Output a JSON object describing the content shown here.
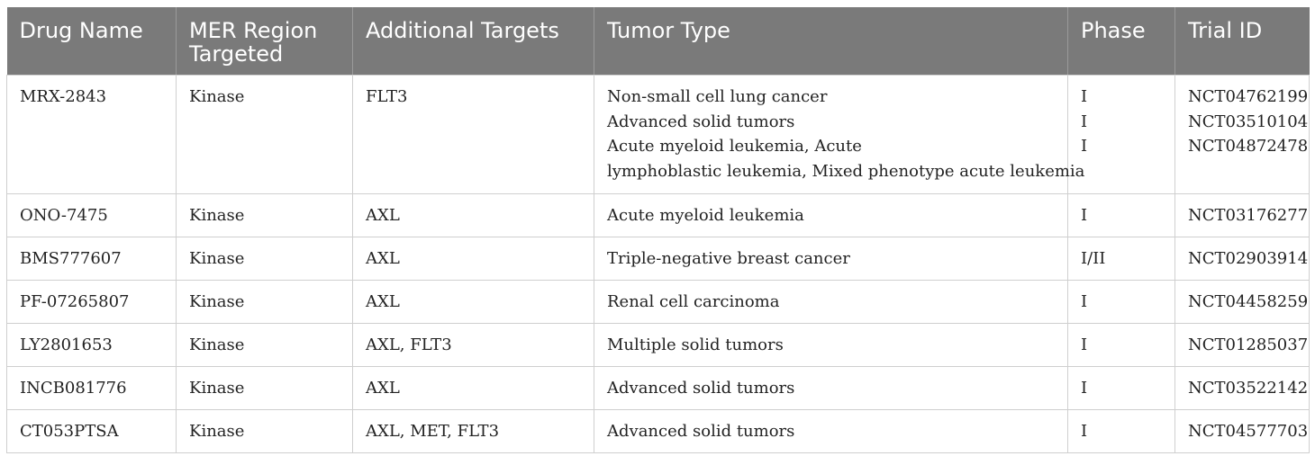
{
  "table": {
    "headers": [
      "Drug Name",
      "MER Region Targeted",
      "Additional Targets",
      "Tumor Type",
      "Phase",
      "Trial ID"
    ],
    "header_color": "#7a7a7a",
    "rows": [
      {
        "drug": "MRX-2843",
        "region": "Kinase",
        "targets": "FLT3",
        "tumor": [
          "Non-small cell lung cancer",
          "Advanced solid tumors",
          "Acute myeloid leukemia, Acute",
          "lymphoblastic leukemia, Mixed phenotype acute leukemia"
        ],
        "phase": [
          "I",
          "I",
          "I"
        ],
        "trial": [
          "NCT04762199",
          "NCT03510104",
          "NCT04872478"
        ]
      },
      {
        "drug": "ONO-7475",
        "region": "Kinase",
        "targets": "AXL",
        "tumor": [
          "Acute myeloid leukemia"
        ],
        "phase": [
          "I"
        ],
        "trial": [
          "NCT03176277"
        ]
      },
      {
        "drug": "BMS777607",
        "region": "Kinase",
        "targets": "AXL",
        "tumor": [
          "Triple-negative breast cancer"
        ],
        "phase": [
          "I/II"
        ],
        "trial": [
          "NCT02903914"
        ]
      },
      {
        "drug": "PF-07265807",
        "region": "Kinase",
        "targets": "AXL",
        "tumor": [
          "Renal cell carcinoma"
        ],
        "phase": [
          "I"
        ],
        "trial": [
          "NCT04458259"
        ]
      },
      {
        "drug": "LY2801653",
        "region": "Kinase",
        "targets": "AXL, FLT3",
        "tumor": [
          "Multiple solid tumors"
        ],
        "phase": [
          "I"
        ],
        "trial": [
          "NCT01285037"
        ]
      },
      {
        "drug": "INCB081776",
        "region": "Kinase",
        "targets": "AXL",
        "tumor": [
          "Advanced solid tumors"
        ],
        "phase": [
          "I"
        ],
        "trial": [
          "NCT03522142"
        ]
      },
      {
        "drug": "CT053PTSA",
        "region": "Kinase",
        "targets": "AXL, MET, FLT3",
        "tumor": [
          "Advanced solid tumors"
        ],
        "phase": [
          "I"
        ],
        "trial": [
          "NCT04577703"
        ]
      }
    ]
  }
}
